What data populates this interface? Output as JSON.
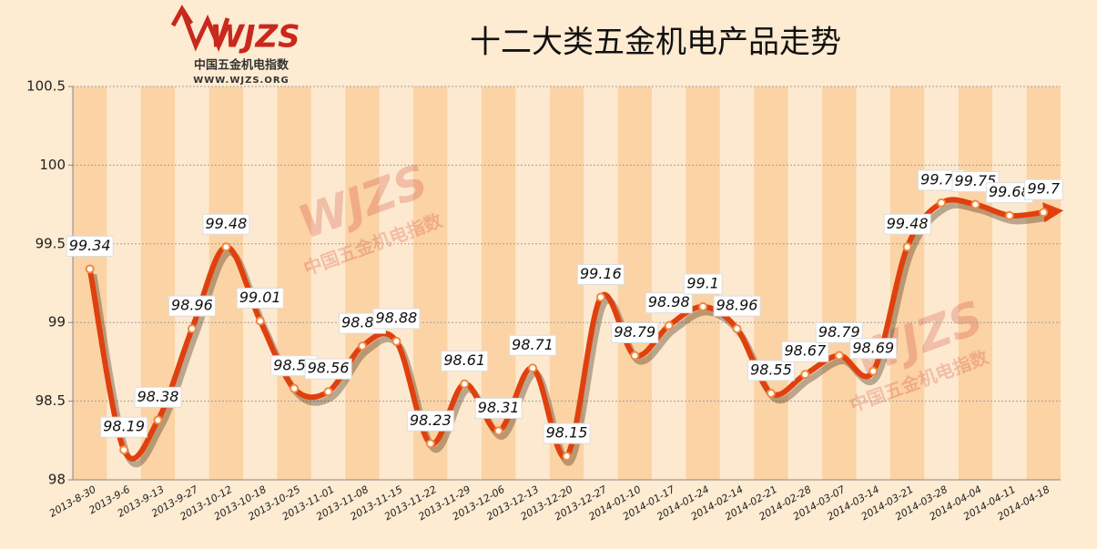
{
  "logo": {
    "mark": "WJZS",
    "name": "中国五金机电指数",
    "url": "WWW.WJZS.ORG"
  },
  "chart_data": {
    "type": "line",
    "title": "十二大类五金机电产品走势",
    "categories": [
      "2013-8-30",
      "2013-9-6",
      "2013-9-13",
      "2013-9-27",
      "2013-10-12",
      "2013-10-18",
      "2013-10-25",
      "2013-11-01",
      "2013-11-08",
      "2013-11-15",
      "2013-11-22",
      "2013-11-29",
      "2013-12-06",
      "2013-12-13",
      "2013-12-20",
      "2013-12-27",
      "2014-01-10",
      "2014-01-17",
      "2014-01-24",
      "2014-02-14",
      "2014-02-21",
      "2014-02-28",
      "2014-03-07",
      "2014-03-14",
      "2014-03-21",
      "2014-03-28",
      "2014-04-04",
      "2014-04-11",
      "2014-04-18"
    ],
    "values": [
      99.34,
      98.19,
      98.38,
      98.96,
      99.48,
      99.01,
      98.58,
      98.56,
      98.85,
      98.88,
      98.23,
      98.61,
      98.31,
      98.71,
      98.15,
      99.16,
      98.79,
      98.98,
      99.1,
      98.96,
      98.55,
      98.67,
      98.79,
      98.69,
      99.48,
      99.76,
      99.75,
      99.68,
      99.7
    ],
    "color": "#e0400e",
    "ylim": [
      98,
      100.5
    ],
    "yticks": [
      98,
      98.5,
      99,
      99.5,
      100,
      100.5
    ],
    "grid": true
  }
}
